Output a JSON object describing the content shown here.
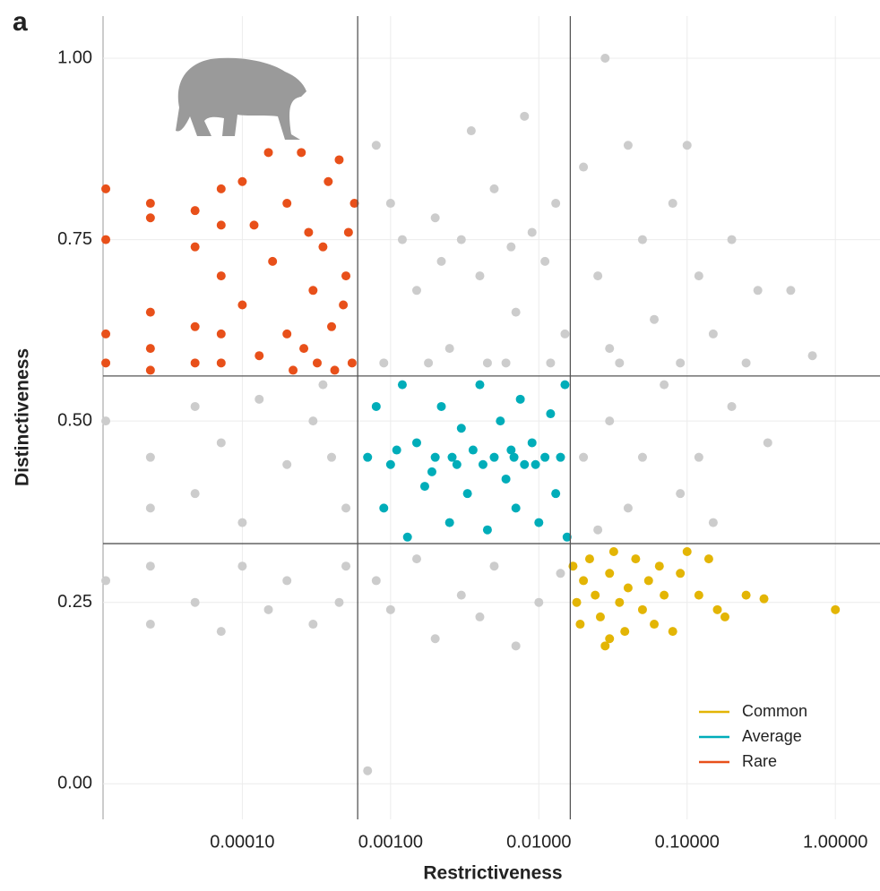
{
  "chart_data": {
    "type": "scatter",
    "panel_label": "a",
    "xlabel": "Restrictiveness",
    "ylabel": "Distinctiveness",
    "xscale": "log",
    "xlim": [
      1.15e-05,
      2.0
    ],
    "ylim": [
      -0.049,
      1.058
    ],
    "grid": true,
    "legend": "lower right",
    "xticks": [
      {
        "value": 0.0001,
        "label": "0.00010"
      },
      {
        "value": 0.001,
        "label": "0.00100"
      },
      {
        "value": 0.01,
        "label": "0.01000"
      },
      {
        "value": 0.1,
        "label": "0.10000"
      },
      {
        "value": 1,
        "label": "1.00000"
      }
    ],
    "yticks": [
      {
        "value": 0,
        "label": "0.00"
      },
      {
        "value": 0.25,
        "label": "0.25"
      },
      {
        "value": 0.5,
        "label": "0.50"
      },
      {
        "value": 0.75,
        "label": "0.75"
      },
      {
        "value": 1,
        "label": "1.00"
      }
    ],
    "vlines": [
      0.0006,
      0.0163
    ],
    "hlines": [
      0.562,
      0.331
    ],
    "series": [
      {
        "color": "#cccccc",
        "x": [
          0.0008,
          0.001,
          0.0012,
          0.0015,
          0.002,
          0.0025,
          0.003,
          0.0035,
          0.004,
          0.005,
          0.006,
          0.007,
          0.008,
          0.009,
          0.011,
          0.013,
          0.015,
          0.0009,
          0.0018,
          0.0045,
          0.012,
          0.0022,
          0.0065,
          0.02,
          0.025,
          0.03,
          0.04,
          0.05,
          0.06,
          0.08,
          0.1,
          0.12,
          0.15,
          0.2,
          0.3,
          0.5,
          0.7,
          0.035,
          0.09,
          0.25,
          1.2e-05,
          2.4e-05,
          2.4e-05,
          4.8e-05,
          4.8e-05,
          7.2e-05,
          0.0001,
          0.00013,
          0.0002,
          0.0003,
          0.0004,
          0.0005,
          0.00035,
          0.02,
          0.03,
          0.04,
          0.05,
          0.07,
          0.09,
          0.12,
          0.2,
          0.35,
          0.025,
          0.15,
          1.2e-05,
          2.4e-05,
          2.4e-05,
          4.8e-05,
          7.2e-05,
          0.0001,
          0.00015,
          0.0002,
          0.0003,
          0.0005,
          0.00045,
          0.0008,
          0.001,
          0.0015,
          0.002,
          0.003,
          0.005,
          0.007,
          0.01,
          0.014,
          0.004,
          0.028,
          0.0007
        ],
        "values": [
          0.88,
          0.8,
          0.75,
          0.68,
          0.78,
          0.6,
          0.75,
          0.9,
          0.7,
          0.82,
          0.58,
          0.65,
          0.92,
          0.76,
          0.72,
          0.8,
          0.62,
          0.58,
          0.58,
          0.58,
          0.58,
          0.72,
          0.74,
          0.85,
          0.7,
          0.6,
          0.88,
          0.75,
          0.64,
          0.8,
          0.88,
          0.7,
          0.62,
          0.75,
          0.68,
          0.68,
          0.59,
          0.58,
          0.58,
          0.58,
          0.5,
          0.45,
          0.38,
          0.52,
          0.4,
          0.47,
          0.36,
          0.53,
          0.44,
          0.5,
          0.45,
          0.38,
          0.55,
          0.45,
          0.5,
          0.38,
          0.45,
          0.55,
          0.4,
          0.45,
          0.52,
          0.47,
          0.35,
          0.36,
          0.28,
          0.22,
          0.3,
          0.25,
          0.21,
          0.3,
          0.24,
          0.28,
          0.22,
          0.3,
          0.25,
          0.28,
          0.24,
          0.31,
          0.2,
          0.26,
          0.3,
          0.19,
          0.25,
          0.29,
          0.23,
          1.0,
          0.018
        ]
      },
      {
        "name": "Common",
        "color": "#e3b505",
        "x": [
          0.017,
          0.018,
          0.019,
          0.02,
          0.022,
          0.024,
          0.026,
          0.028,
          0.03,
          0.032,
          0.035,
          0.038,
          0.04,
          0.045,
          0.05,
          0.055,
          0.06,
          0.065,
          0.07,
          0.08,
          0.09,
          0.1,
          0.12,
          0.14,
          0.16,
          0.18,
          0.25,
          0.33,
          1.0,
          0.03
        ],
        "values": [
          0.3,
          0.25,
          0.22,
          0.28,
          0.31,
          0.26,
          0.23,
          0.19,
          0.29,
          0.32,
          0.25,
          0.21,
          0.27,
          0.31,
          0.24,
          0.28,
          0.22,
          0.3,
          0.26,
          0.21,
          0.29,
          0.32,
          0.26,
          0.31,
          0.24,
          0.23,
          0.26,
          0.255,
          0.24,
          0.2
        ]
      },
      {
        "name": "Average",
        "color": "#00adb9",
        "x": [
          0.0007,
          0.0008,
          0.0009,
          0.001,
          0.0012,
          0.0013,
          0.0015,
          0.0017,
          0.002,
          0.0022,
          0.0025,
          0.0028,
          0.003,
          0.0033,
          0.0036,
          0.004,
          0.0045,
          0.005,
          0.0055,
          0.006,
          0.0065,
          0.007,
          0.0075,
          0.008,
          0.009,
          0.01,
          0.011,
          0.012,
          0.013,
          0.014,
          0.015,
          0.0155,
          0.0011,
          0.0019,
          0.0042,
          0.0068,
          0.0095,
          0.0026
        ],
        "values": [
          0.45,
          0.52,
          0.38,
          0.44,
          0.55,
          0.34,
          0.47,
          0.41,
          0.45,
          0.52,
          0.36,
          0.44,
          0.49,
          0.4,
          0.46,
          0.55,
          0.35,
          0.45,
          0.5,
          0.42,
          0.46,
          0.38,
          0.53,
          0.44,
          0.47,
          0.36,
          0.45,
          0.51,
          0.4,
          0.45,
          0.55,
          0.34,
          0.46,
          0.43,
          0.44,
          0.45,
          0.44,
          0.45
        ]
      },
      {
        "name": "Rare",
        "color": "#e8501a",
        "x": [
          1.2e-05,
          1.2e-05,
          1.2e-05,
          1.2e-05,
          2.4e-05,
          2.4e-05,
          2.4e-05,
          2.4e-05,
          2.4e-05,
          4.8e-05,
          4.8e-05,
          4.8e-05,
          4.8e-05,
          7.2e-05,
          7.2e-05,
          7.2e-05,
          7.2e-05,
          7.2e-05,
          0.0001,
          0.0001,
          0.00012,
          0.00013,
          0.00015,
          0.00016,
          0.0002,
          0.0002,
          0.00022,
          0.00025,
          0.00028,
          0.0003,
          0.00032,
          0.00035,
          0.00038,
          0.0004,
          0.00042,
          0.00045,
          0.0005,
          0.00052,
          0.00055,
          0.00057,
          0.00026,
          0.00048
        ],
        "values": [
          0.82,
          0.75,
          0.62,
          0.58,
          0.8,
          0.78,
          0.65,
          0.6,
          0.57,
          0.79,
          0.74,
          0.63,
          0.58,
          0.82,
          0.77,
          0.7,
          0.62,
          0.58,
          0.83,
          0.66,
          0.77,
          0.59,
          0.87,
          0.72,
          0.8,
          0.62,
          0.57,
          0.87,
          0.76,
          0.68,
          0.58,
          0.74,
          0.83,
          0.63,
          0.57,
          0.86,
          0.7,
          0.76,
          0.58,
          0.8,
          0.6,
          0.66
        ]
      }
    ]
  }
}
